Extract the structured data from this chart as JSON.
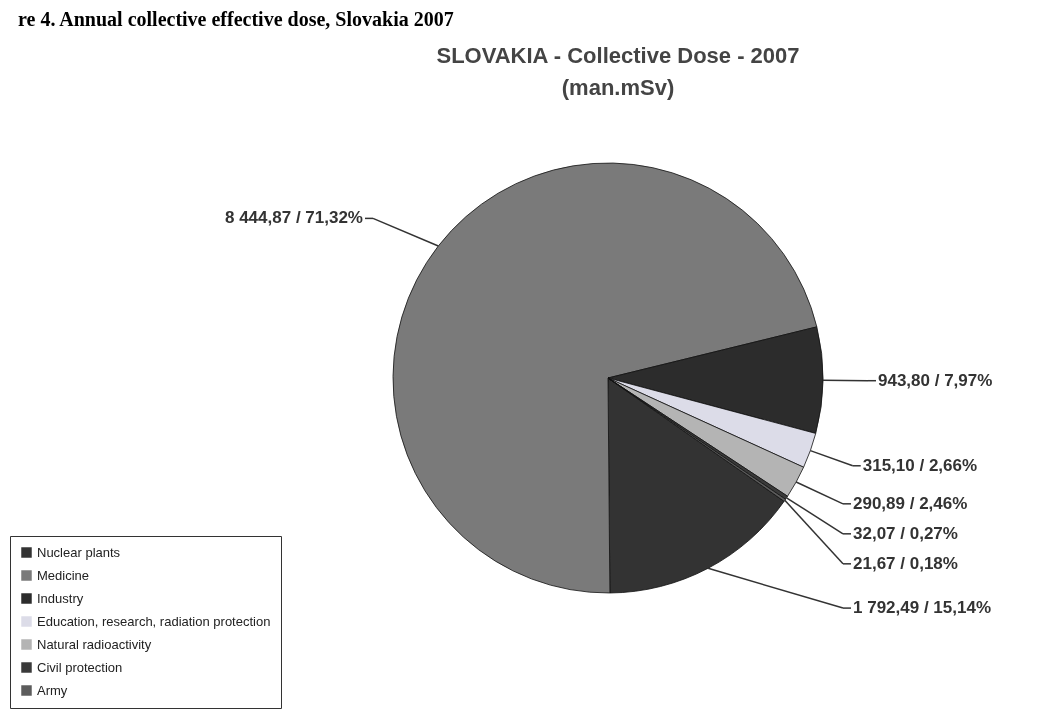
{
  "chart_data": {
    "type": "pie",
    "title": "SLOVAKIA - Collective Dose - 2007",
    "subtitle": "(man.mSv)",
    "annotations": [
      "re 4. Annual collective effective dose, Slovakia 2007"
    ],
    "categories": [
      "Nuclear plants",
      "Medicine",
      "Industry",
      "Education, research, radiation protection",
      "Natural radioactivity",
      "Civil protection",
      "Army"
    ],
    "values": [
      1792.49,
      8444.87,
      943.8,
      315.1,
      290.89,
      32.07,
      21.67
    ],
    "value_labels": [
      "1 792,49 / 15,14%",
      "8 444,87 / 71,32%",
      "943,80 / 7,97%",
      "315,10 / 2,66%",
      "290,89 / 2,46%",
      "32,07 / 0,27%",
      "21,67 / 0,18%"
    ],
    "colors": [
      "#333333",
      "#7a7a7a",
      "#2c2c2c",
      "#dcdce8",
      "#b4b4b4",
      "#3a3a3a",
      "#5c5c5c"
    ],
    "legend": "bottom left"
  }
}
